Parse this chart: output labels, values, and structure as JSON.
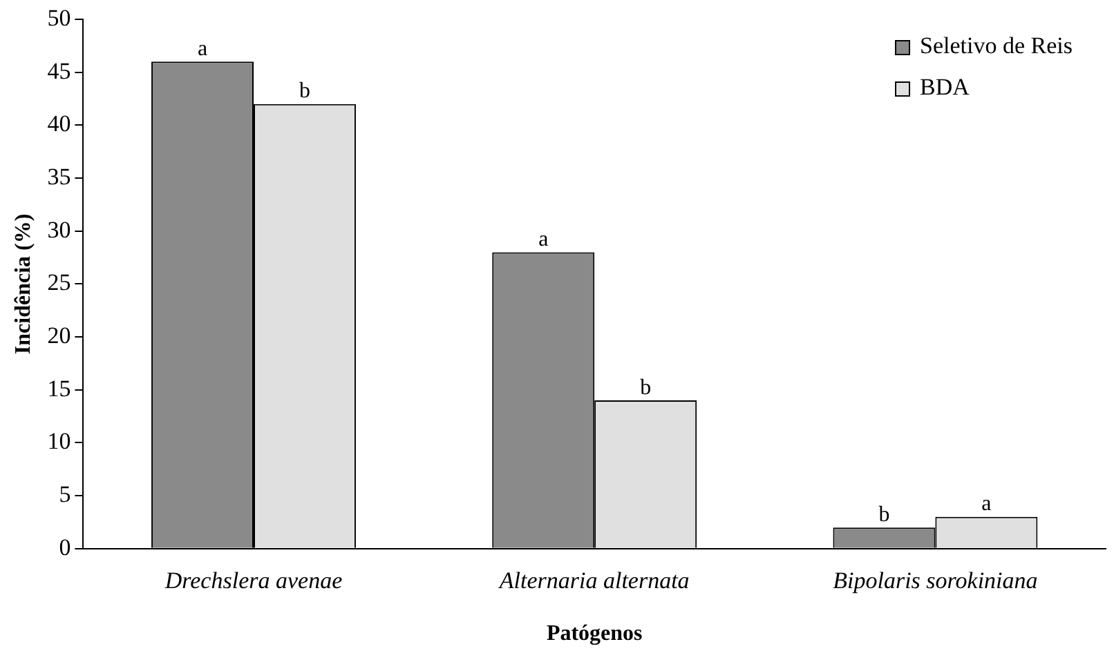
{
  "chart_data": {
    "type": "bar",
    "xlabel": "Patógenos",
    "ylabel": "Incidência (%)",
    "categories": [
      "Drechslera avenae",
      "Alternaria alternata",
      "Bipolaris sorokiniana"
    ],
    "series": [
      {
        "name": "Seletivo de Reis",
        "color": "#8a8a8a",
        "values": [
          46,
          28,
          2
        ]
      },
      {
        "name": "BDA",
        "color": "#e0e0e0",
        "values": [
          42,
          14,
          3
        ]
      }
    ],
    "ylim": [
      0,
      50
    ],
    "yticks": [
      0,
      5,
      10,
      15,
      20,
      25,
      30,
      35,
      40,
      45,
      50
    ],
    "grid": false,
    "legend": "top right",
    "annotations": [
      {
        "text": "a",
        "x": "Drechslera avenae",
        "y": 46
      },
      {
        "text": "b",
        "x": "Drechslera avenae",
        "y": 42
      },
      {
        "text": "a",
        "x": "Alternaria alternata",
        "y": 28
      },
      {
        "text": "b",
        "x": "Alternaria alternata",
        "y": 14
      },
      {
        "text": "b",
        "x": "Bipolaris sorokiniana",
        "y": 2
      },
      {
        "text": "a",
        "x": "Bipolaris sorokiniana",
        "y": 3
      }
    ]
  }
}
